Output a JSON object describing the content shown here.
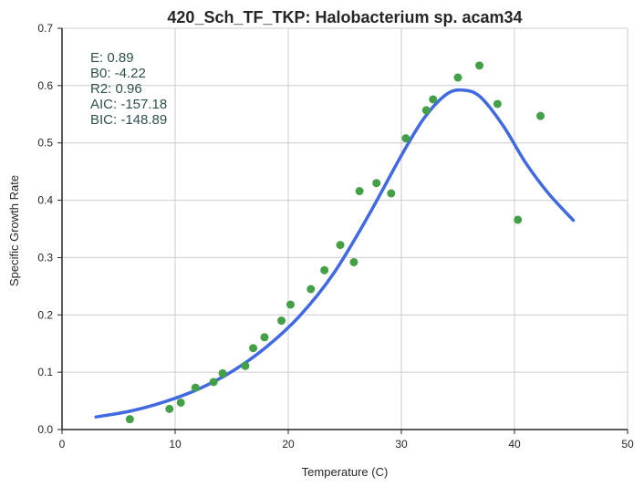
{
  "chart_data": {
    "type": "scatter",
    "title": "420_Sch_TF_TKP: Halobacterium sp. acam34",
    "xlabel": "Temperature (C)",
    "ylabel": "Specific Growth Rate",
    "xlim": [
      0,
      50
    ],
    "ylim": [
      0,
      0.7
    ],
    "xticks": [
      "0",
      "10",
      "20",
      "30",
      "40",
      "50"
    ],
    "yticks": [
      "0.0",
      "0.1",
      "0.2",
      "0.3",
      "0.4",
      "0.5",
      "0.6",
      "0.7"
    ],
    "grid": true,
    "colors": {
      "points": "#43a047",
      "fit": "#4169e1",
      "grid": "#cccccc",
      "stats": "#2f4f4f"
    },
    "stats": [
      "E:  0.89",
      "B0:  -4.22",
      "R2:  0.96",
      "AIC: -157.18",
      "BIC: -148.89"
    ],
    "series": [
      {
        "kind": "points",
        "x": [
          6.0,
          9.5,
          10.5,
          11.8,
          13.4,
          14.2,
          16.2,
          16.9,
          17.9,
          19.4,
          20.2,
          22.0,
          23.2,
          24.6,
          25.8,
          26.3,
          27.8,
          29.1,
          30.4,
          32.2,
          32.8,
          35.0,
          36.9,
          38.5,
          40.3,
          42.3
        ],
        "y": [
          0.018,
          0.036,
          0.047,
          0.073,
          0.083,
          0.098,
          0.111,
          0.142,
          0.161,
          0.19,
          0.218,
          0.245,
          0.278,
          0.322,
          0.292,
          0.416,
          0.43,
          0.412,
          0.508,
          0.557,
          0.576,
          0.614,
          0.635,
          0.568,
          0.366,
          0.547
        ]
      },
      {
        "kind": "fit",
        "x": [
          3.0,
          6.0,
          9.0,
          12.0,
          15.0,
          18.0,
          21.0,
          24.0,
          27.0,
          30.0,
          32.0,
          34.0,
          35.5,
          37.0,
          39.0,
          41.0,
          43.0,
          45.2
        ],
        "y": [
          0.022,
          0.032,
          0.048,
          0.07,
          0.101,
          0.143,
          0.198,
          0.272,
          0.37,
          0.478,
          0.543,
          0.585,
          0.592,
          0.58,
          0.53,
          0.465,
          0.412,
          0.365
        ]
      }
    ]
  }
}
